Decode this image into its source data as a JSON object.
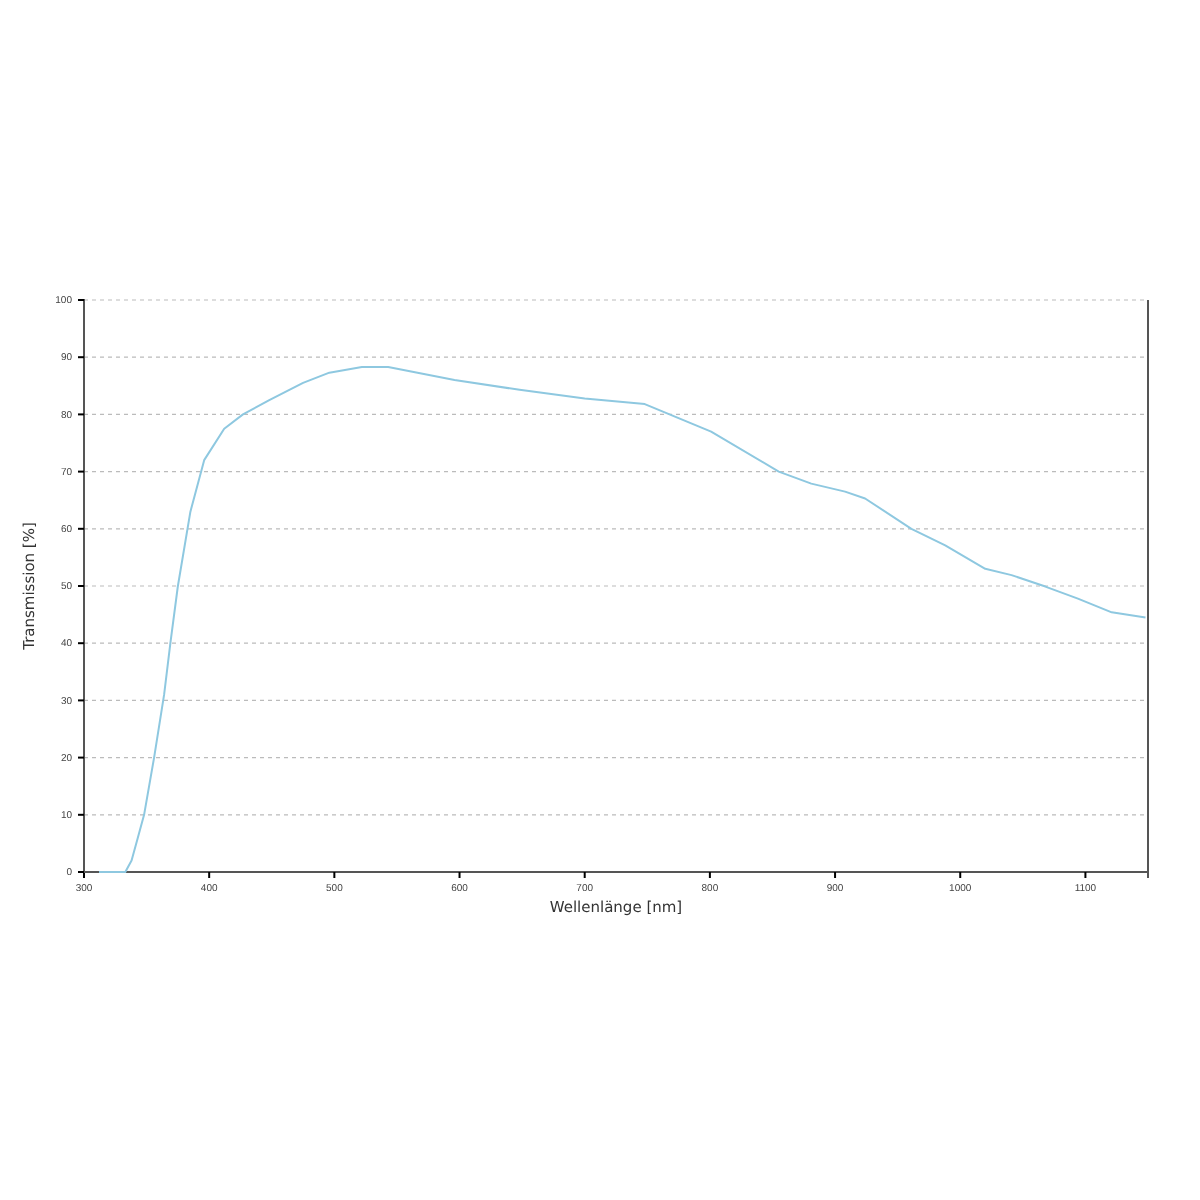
{
  "chart_data": {
    "type": "line",
    "xlabel": "Wellenlänge [nm]",
    "ylabel": "Transmission [%]",
    "xlim": [
      300,
      1150
    ],
    "xticks": [
      300,
      400,
      500,
      600,
      700,
      800,
      900,
      1000,
      1100
    ],
    "ylim": [
      0,
      100
    ],
    "yticks": [
      0,
      10,
      20,
      30,
      40,
      50,
      60,
      70,
      80,
      90,
      100
    ],
    "grid": "y",
    "marker": "none",
    "line_style": "solid",
    "series": [
      {
        "color": "#8ec8e0",
        "x": [
          312,
          333,
          338,
          343,
          348,
          356,
          364,
          369,
          375,
          385,
          396,
          412,
          427,
          448,
          475,
          496,
          522,
          543,
          596,
          648,
          700,
          748,
          801,
          855,
          881,
          908,
          924,
          961,
          988,
          1020,
          1041,
          1068,
          1094,
          1121,
          1148
        ],
        "values": [
          0,
          0,
          2,
          6,
          10,
          20,
          31,
          40,
          50,
          63,
          72,
          77.5,
          80,
          82.5,
          85.5,
          87.3,
          88.3,
          88.3,
          86,
          84.3,
          82.8,
          81.8,
          77,
          70,
          67.9,
          66.5,
          65.3,
          60,
          57.1,
          53,
          51.9,
          49.9,
          47.8,
          45.4,
          44.5
        ]
      }
    ]
  }
}
